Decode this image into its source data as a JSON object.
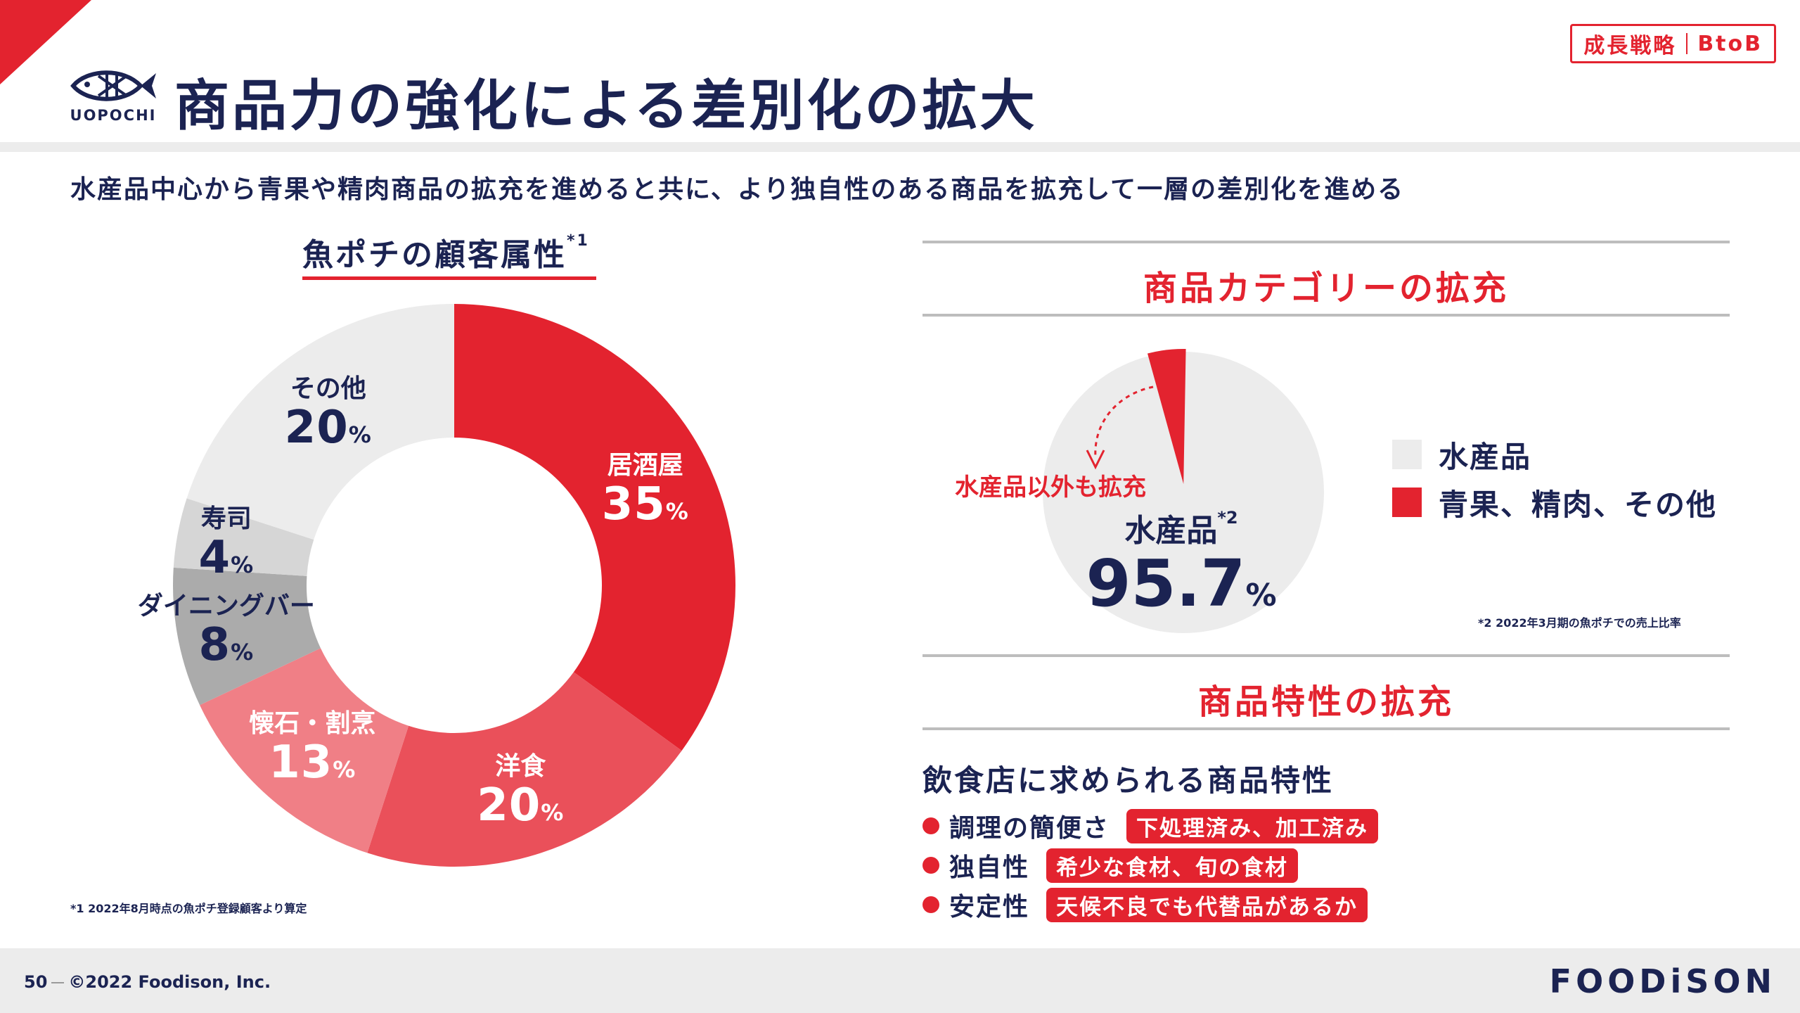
{
  "header": {
    "logo_text": "UOPOCHI",
    "title": "商品力の強化による差別化の拡大",
    "badge_left": "成長戦略",
    "badge_right": "BtoB",
    "subtitle": "水産品中心から青果や精肉商品の拡充を進めると共に、より独自性のある商品を拡充して一層の差別化を進める"
  },
  "colors": {
    "accent": "#e3232f",
    "navy": "#1b2352",
    "light_gray": "#ececec"
  },
  "icons": {
    "logo": "fish-logo-icon",
    "bullet": "red-dot-icon"
  },
  "chart_data": [
    {
      "type": "pie",
      "subtype": "donut",
      "title": "魚ポチの顧客属性",
      "title_note": "*1",
      "slices": [
        {
          "label": "居酒屋",
          "value": 35,
          "unit": "%",
          "color": "#e3232f"
        },
        {
          "label": "洋食",
          "value": 20,
          "unit": "%",
          "color": "#ea505a"
        },
        {
          "label": "懐石・割烹",
          "value": 13,
          "unit": "%",
          "color": "#f07f86"
        },
        {
          "label": "ダイニングバー",
          "value": 8,
          "unit": "%",
          "color": "#ababab"
        },
        {
          "label": "寿司",
          "value": 4,
          "unit": "%",
          "color": "#d6d6d6"
        },
        {
          "label": "その他",
          "value": 20,
          "unit": "%",
          "color": "#ececec"
        }
      ],
      "footnote": "*1 2022年8月時点の魚ポチ登録顧客より算定"
    },
    {
      "type": "pie",
      "title": "商品カテゴリーの拡充",
      "slices": [
        {
          "label": "水産品",
          "value": 95.7,
          "unit": "%",
          "color": "#ececec"
        },
        {
          "label": "青果、精肉、その他",
          "value": 4.3,
          "unit": "%",
          "color": "#e3232f"
        }
      ],
      "center_label": "水産品",
      "center_label_note": "*2",
      "center_value": "95.7",
      "center_unit": "%",
      "annotation": "水産品以外も拡充",
      "legend": [
        "水産品",
        "青果、精肉、その他"
      ],
      "legend_placement": "right",
      "footnote": "*2 2022年3月期の魚ポチでの売上比率"
    }
  ],
  "features": {
    "section_title": "商品特性の拡充",
    "heading": "飲食店に求められる商品特性",
    "items": [
      {
        "name": "調理の簡便さ",
        "tag": "下処理済み、加工済み"
      },
      {
        "name": "独自性",
        "tag": "希少な食材、旬の食材"
      },
      {
        "name": "安定性",
        "tag": "天候不良でも代替品があるか"
      }
    ]
  },
  "footer": {
    "page_number": "50",
    "copyright": "©2022 Foodison, Inc.",
    "brand": "FOODiSON"
  }
}
